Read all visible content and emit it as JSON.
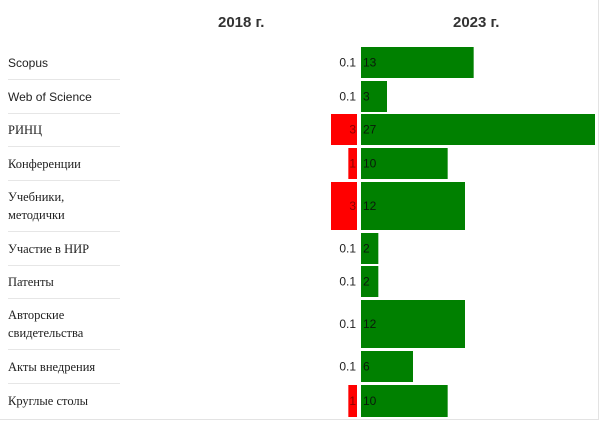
{
  "headers": {
    "left": "2018 г.",
    "right": "2023 г."
  },
  "chart_data": {
    "type": "bar",
    "categories": [
      "Scopus",
      "Web of Science",
      "РИНЦ",
      "Конференции",
      "Учебники, методички",
      "Участие в НИР",
      "Патенты",
      "Авторские свидетельства",
      "Акты внедрения",
      "Круглые столы"
    ],
    "category_lines": [
      [
        "Scopus"
      ],
      [
        "Web of Science"
      ],
      [
        "РИНЦ"
      ],
      [
        "Конференции"
      ],
      [
        "Учебники,",
        "методички"
      ],
      [
        "Участие в НИР"
      ],
      [
        "Патенты"
      ],
      [
        "Авторские",
        "свидетельства"
      ],
      [
        "Акты внедрения"
      ],
      [
        "Круглые столы"
      ]
    ],
    "series": [
      {
        "name": "2018 г.",
        "values": [
          0.1,
          0.1,
          3,
          1,
          3,
          0.1,
          0.1,
          0.1,
          0.1,
          1
        ],
        "labels": [
          "0.1",
          "0.1",
          "3",
          "1",
          "3",
          "0.1",
          "0.1",
          "0.1",
          "0.1",
          "1"
        ],
        "color": "#ff0000"
      },
      {
        "name": "2023 г.",
        "values": [
          13,
          3,
          27,
          10,
          12,
          2,
          2,
          12,
          6,
          10
        ],
        "labels": [
          "13",
          "3",
          "27",
          "10",
          "12",
          "2",
          "2",
          "12",
          "6",
          "10"
        ],
        "color": "#008000"
      }
    ]
  }
}
